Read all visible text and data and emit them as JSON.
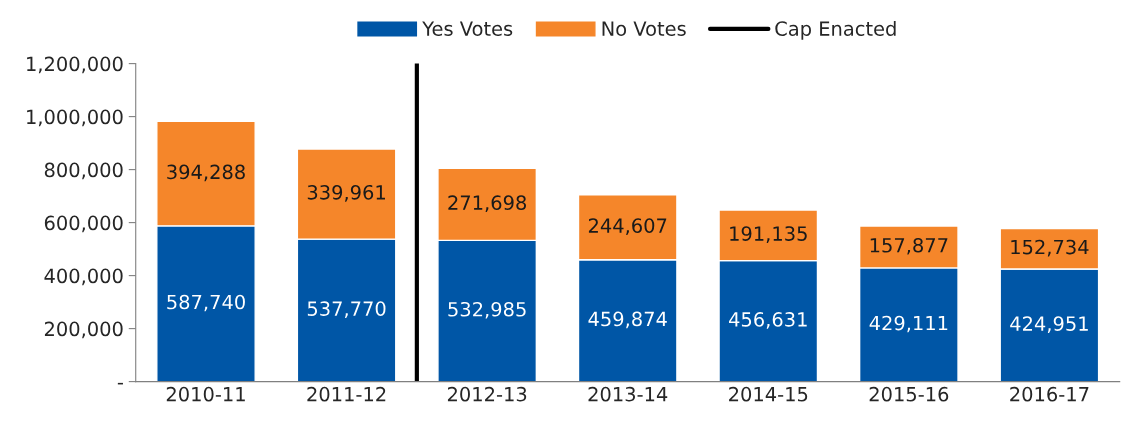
{
  "chart_data": {
    "type": "bar",
    "stacked": true,
    "categories": [
      "2010-11",
      "2011-12",
      "2012-13",
      "2013-14",
      "2014-15",
      "2015-16",
      "2016-17"
    ],
    "series": [
      {
        "name": "Yes Votes",
        "color": "#0056a6",
        "values": [
          587740,
          537770,
          532985,
          459874,
          456631,
          429111,
          424951
        ],
        "value_labels": [
          "587,740",
          "537,770",
          "532,985",
          "459,874",
          "456,631",
          "429,111",
          "424,951"
        ]
      },
      {
        "name": "No Votes",
        "color": "#f5862a",
        "values": [
          394288,
          339961,
          271698,
          244607,
          191135,
          157877,
          152734
        ],
        "value_labels": [
          "394,288",
          "339,961",
          "271,698",
          "244,607",
          "191,135",
          "157,877",
          "152,734"
        ]
      }
    ],
    "ref_lines": [
      {
        "axis": "x",
        "label": "Cap Enacted",
        "color": "#000000",
        "line_style": "solid"
      }
    ],
    "ylim": [
      0,
      1200000
    ],
    "yticks": [
      {
        "value": 0,
        "label": "-"
      },
      {
        "value": 200000,
        "label": "200,000"
      },
      {
        "value": 400000,
        "label": "400,000"
      },
      {
        "value": 600000,
        "label": "600,000"
      },
      {
        "value": 800000,
        "label": "800,000"
      },
      {
        "value": 1000000,
        "label": "1,000,000"
      },
      {
        "value": 1200000,
        "label": "1,200,000"
      }
    ],
    "grid": false,
    "legend": "top"
  }
}
